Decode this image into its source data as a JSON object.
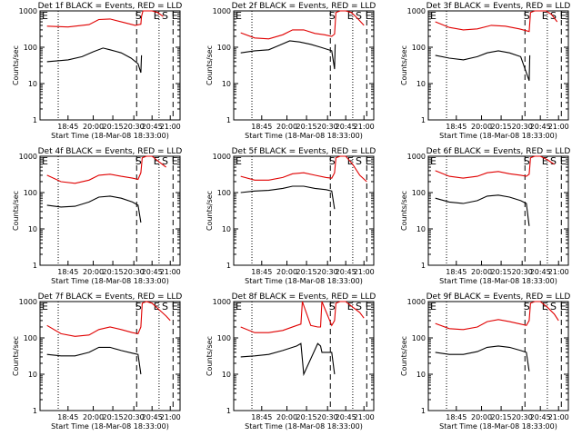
{
  "colors": {
    "events": "#000000",
    "lld": "#e00000",
    "background": "#ffffff"
  },
  "chart_data": [
    {
      "type": "line",
      "title": "Det 1f BLACK = Events, RED = LLD",
      "xlabel": "Start Time (18-Mar-08 18:33:00)",
      "ylabel": "Counts/sec",
      "yscale": "log",
      "ylim": [
        1,
        1000
      ],
      "xticks": [
        "18:45",
        "20:00",
        "20:15",
        "20:30",
        "20:45",
        "21:00"
      ],
      "yticks": [
        "1",
        "10",
        "100",
        "1000"
      ],
      "markers": [
        "S",
        "E",
        "S",
        "E"
      ],
      "series": [
        {
          "x": [
            0.05,
            0.2,
            0.35,
            0.42,
            0.5,
            0.6,
            0.68,
            0.72,
            0.725,
            0.735,
            0.76,
            0.8,
            0.84,
            0.88
          ],
          "values": [
            380,
            360,
            420,
            580,
            600,
            480,
            400,
            430,
            700,
            1000,
            1000,
            1000,
            900,
            700
          ]
        },
        {
          "x": [
            0.05,
            0.2,
            0.3,
            0.38,
            0.45,
            0.5,
            0.58,
            0.65,
            0.7,
            0.72,
            0.725
          ],
          "values": [
            40,
            45,
            55,
            75,
            95,
            85,
            70,
            50,
            35,
            20,
            60
          ]
        }
      ]
    },
    {
      "type": "line",
      "title": "Det 2f BLACK = Events, RED = LLD",
      "xlabel": "Start Time (18-Mar-08 18:33:00)",
      "ylabel": "Counts/sec",
      "yscale": "log",
      "ylim": [
        1,
        1000
      ],
      "xticks": [
        "18:45",
        "20:00",
        "20:15",
        "20:30",
        "20:45",
        "21:00"
      ],
      "yticks": [
        "1",
        "10",
        "100",
        "1000"
      ],
      "markers": [
        "S",
        "E",
        "S",
        "E"
      ],
      "series": [
        {
          "x": [
            0.05,
            0.15,
            0.25,
            0.35,
            0.42,
            0.5,
            0.58,
            0.65,
            0.7,
            0.72,
            0.73,
            0.76,
            0.8,
            0.84,
            0.88,
            0.93
          ],
          "values": [
            250,
            180,
            170,
            220,
            300,
            300,
            240,
            220,
            200,
            230,
            900,
            1000,
            1000,
            900,
            650,
            400
          ]
        },
        {
          "x": [
            0.05,
            0.15,
            0.25,
            0.32,
            0.4,
            0.47,
            0.55,
            0.62,
            0.7,
            0.72,
            0.725
          ],
          "values": [
            70,
            80,
            85,
            110,
            150,
            140,
            120,
            100,
            80,
            25,
            120
          ]
        }
      ]
    },
    {
      "type": "line",
      "title": "Det 3f BLACK = Events, RED = LLD",
      "xlabel": "Start Time (18-Mar-08 18:33:00)",
      "ylabel": "Counts/sec",
      "yscale": "log",
      "ylim": [
        1,
        1000
      ],
      "xticks": [
        "18:45",
        "20:00",
        "20:15",
        "20:30",
        "20:45",
        "21:00"
      ],
      "yticks": [
        "1",
        "10",
        "100",
        "1000"
      ],
      "markers": [
        "S",
        "E",
        "S",
        "E"
      ],
      "series": [
        {
          "x": [
            0.05,
            0.15,
            0.25,
            0.35,
            0.45,
            0.55,
            0.65,
            0.72,
            0.73,
            0.76,
            0.8,
            0.84,
            0.88,
            0.92
          ],
          "values": [
            500,
            350,
            300,
            320,
            400,
            380,
            320,
            270,
            900,
            1000,
            1000,
            1000,
            800,
            500
          ]
        },
        {
          "x": [
            0.05,
            0.15,
            0.25,
            0.35,
            0.42,
            0.5,
            0.58,
            0.66,
            0.72,
            0.725
          ],
          "values": [
            60,
            50,
            45,
            55,
            70,
            80,
            70,
            55,
            12,
            60
          ]
        }
      ]
    },
    {
      "type": "line",
      "title": "Det 4f BLACK = Events, RED = LLD",
      "xlabel": "Start Time (18-Mar-08 18:33:00)",
      "ylabel": "Counts/sec",
      "yscale": "log",
      "ylim": [
        1,
        1000
      ],
      "xticks": [
        "18:45",
        "20:00",
        "20:15",
        "20:30",
        "20:45",
        "21:00"
      ],
      "yticks": [
        "1",
        "10",
        "100",
        "1000"
      ],
      "markers": [
        "S",
        "E",
        "S",
        "E"
      ],
      "series": [
        {
          "x": [
            0.05,
            0.15,
            0.25,
            0.35,
            0.42,
            0.5,
            0.58,
            0.66,
            0.7,
            0.72,
            0.73,
            0.76,
            0.8,
            0.85,
            0.9
          ],
          "values": [
            300,
            200,
            180,
            220,
            300,
            320,
            280,
            250,
            230,
            350,
            900,
            1000,
            1000,
            700,
            500
          ]
        },
        {
          "x": [
            0.05,
            0.15,
            0.25,
            0.35,
            0.42,
            0.5,
            0.58,
            0.66,
            0.7,
            0.72
          ],
          "values": [
            45,
            40,
            42,
            55,
            75,
            80,
            70,
            55,
            45,
            15
          ]
        }
      ]
    },
    {
      "type": "line",
      "title": "Det 5f BLACK = Events, RED = LLD",
      "xlabel": "Start Time (18-Mar-08 18:33:00)",
      "ylabel": "Counts/sec",
      "yscale": "log",
      "ylim": [
        1,
        1000
      ],
      "xticks": [
        "18:45",
        "20:00",
        "20:15",
        "20:30",
        "20:45",
        "21:00"
      ],
      "yticks": [
        "1",
        "10",
        "100",
        "1000"
      ],
      "markers": [
        "S",
        "E",
        "S",
        "E"
      ],
      "series": [
        {
          "x": [
            0.05,
            0.15,
            0.25,
            0.35,
            0.42,
            0.5,
            0.58,
            0.66,
            0.7,
            0.72,
            0.73,
            0.76,
            0.8,
            0.85,
            0.9,
            0.95
          ],
          "values": [
            280,
            220,
            220,
            260,
            330,
            350,
            300,
            260,
            250,
            350,
            900,
            1000,
            1000,
            600,
            300,
            200
          ]
        },
        {
          "x": [
            0.05,
            0.15,
            0.25,
            0.35,
            0.42,
            0.5,
            0.58,
            0.66,
            0.7,
            0.72
          ],
          "values": [
            100,
            110,
            115,
            130,
            150,
            150,
            130,
            120,
            110,
            35
          ]
        }
      ]
    },
    {
      "type": "line",
      "title": "Det 6f BLACK = Events, RED = LLD",
      "xlabel": "Start Time (18-Mar-08 18:33:00)",
      "ylabel": "Counts/sec",
      "yscale": "log",
      "ylim": [
        1,
        1000
      ],
      "xticks": [
        "18:45",
        "20:00",
        "20:15",
        "20:30",
        "20:45",
        "21:00"
      ],
      "yticks": [
        "1",
        "10",
        "100",
        "1000"
      ],
      "markers": [
        "S",
        "E",
        "S",
        "E"
      ],
      "series": [
        {
          "x": [
            0.05,
            0.15,
            0.25,
            0.35,
            0.42,
            0.5,
            0.58,
            0.66,
            0.7,
            0.72,
            0.73,
            0.76,
            0.8,
            0.85,
            0.9
          ],
          "values": [
            400,
            280,
            250,
            280,
            350,
            380,
            330,
            300,
            280,
            320,
            900,
            1000,
            1000,
            800,
            600
          ]
        },
        {
          "x": [
            0.05,
            0.15,
            0.25,
            0.35,
            0.42,
            0.5,
            0.58,
            0.66,
            0.7,
            0.72
          ],
          "values": [
            70,
            55,
            50,
            60,
            80,
            85,
            75,
            60,
            50,
            12
          ]
        }
      ]
    },
    {
      "type": "line",
      "title": "Det 7f BLACK = Events, RED = LLD",
      "xlabel": "Start Time (18-Mar-08 18:33:00)",
      "ylabel": "Counts/sec",
      "yscale": "log",
      "ylim": [
        1,
        1000
      ],
      "xticks": [
        "18:45",
        "20:00",
        "20:15",
        "20:30",
        "20:45",
        "21:00"
      ],
      "yticks": [
        "1",
        "10",
        "100",
        "1000"
      ],
      "markers": [
        "S",
        "E",
        "S",
        "E"
      ],
      "series": [
        {
          "x": [
            0.05,
            0.15,
            0.25,
            0.35,
            0.42,
            0.5,
            0.58,
            0.66,
            0.7,
            0.72,
            0.73,
            0.76,
            0.8,
            0.85,
            0.9,
            0.93
          ],
          "values": [
            220,
            130,
            110,
            120,
            170,
            200,
            170,
            140,
            130,
            200,
            900,
            1000,
            900,
            600,
            400,
            300
          ]
        },
        {
          "x": [
            0.05,
            0.15,
            0.25,
            0.35,
            0.42,
            0.5,
            0.58,
            0.66,
            0.7,
            0.72
          ],
          "values": [
            35,
            32,
            32,
            40,
            55,
            55,
            45,
            38,
            35,
            10
          ]
        }
      ]
    },
    {
      "type": "line",
      "title": "Det 8f BLACK = Events, RED = LLD",
      "xlabel": "Start Time (18-Mar-08 18:33:00)",
      "ylabel": "Counts/sec",
      "yscale": "log",
      "ylim": [
        1,
        1000
      ],
      "xticks": [
        "18:45",
        "20:00",
        "20:15",
        "20:30",
        "20:45",
        "21:00"
      ],
      "yticks": [
        "1",
        "10",
        "100",
        "1000"
      ],
      "markers": [
        "S",
        "E",
        "S",
        "E"
      ],
      "series": [
        {
          "x": [
            0.05,
            0.15,
            0.25,
            0.35,
            0.45,
            0.48,
            0.49,
            0.55,
            0.6,
            0.62,
            0.63,
            0.7,
            0.72,
            0.73,
            0.76,
            0.8,
            0.85,
            0.9,
            0.93
          ],
          "values": [
            200,
            140,
            140,
            160,
            220,
            240,
            1000,
            220,
            200,
            200,
            1000,
            220,
            300,
            900,
            1000,
            1000,
            700,
            500,
            350
          ]
        },
        {
          "x": [
            0.05,
            0.15,
            0.25,
            0.35,
            0.45,
            0.48,
            0.5,
            0.6,
            0.62,
            0.63,
            0.7,
            0.72
          ],
          "values": [
            30,
            32,
            35,
            45,
            60,
            70,
            10,
            70,
            60,
            40,
            40,
            10
          ]
        }
      ]
    },
    {
      "type": "line",
      "title": "Det 9f BLACK = Events, RED = LLD",
      "xlabel": "Start Time (18-Mar-08 18:33:00)",
      "ylabel": "Counts/sec",
      "yscale": "log",
      "ylim": [
        1,
        1000
      ],
      "xticks": [
        "18:45",
        "20:00",
        "20:15",
        "20:30",
        "20:45",
        "21:00"
      ],
      "yticks": [
        "1",
        "10",
        "100",
        "1000"
      ],
      "markers": [
        "S",
        "E",
        "S",
        "E"
      ],
      "series": [
        {
          "x": [
            0.05,
            0.15,
            0.25,
            0.35,
            0.42,
            0.5,
            0.58,
            0.66,
            0.7,
            0.72,
            0.73,
            0.76,
            0.8,
            0.85,
            0.9,
            0.93
          ],
          "values": [
            250,
            180,
            170,
            200,
            280,
            320,
            280,
            240,
            220,
            300,
            900,
            1000,
            1000,
            700,
            450,
            300
          ]
        },
        {
          "x": [
            0.05,
            0.15,
            0.25,
            0.35,
            0.42,
            0.5,
            0.58,
            0.66,
            0.7,
            0.72
          ],
          "values": [
            40,
            35,
            35,
            42,
            55,
            60,
            55,
            45,
            40,
            12
          ]
        }
      ]
    }
  ]
}
